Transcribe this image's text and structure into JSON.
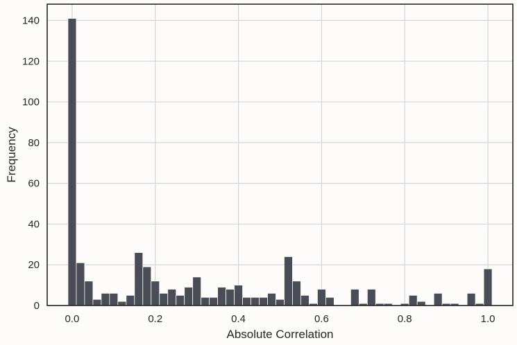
{
  "chart_data": {
    "type": "bar",
    "title": "",
    "xlabel": "Absolute Correlation",
    "ylabel": "Frequency",
    "bin_start": 0.0,
    "bin_width": 0.02,
    "values": [
      141,
      21,
      12,
      3,
      6,
      6,
      2,
      5,
      26,
      19,
      12,
      6,
      8,
      5,
      9,
      14,
      4,
      4,
      9,
      8,
      10,
      4,
      4,
      4,
      6,
      3,
      24,
      12,
      5,
      1,
      8,
      4,
      0,
      0,
      8,
      1,
      8,
      1,
      1,
      0,
      1,
      5,
      2,
      0,
      6,
      1,
      1,
      0,
      6,
      1,
      18
    ],
    "xlim": [
      -0.06,
      1.06
    ],
    "ylim": [
      0,
      148
    ],
    "xticks": [
      "0.0",
      "0.2",
      "0.4",
      "0.6",
      "0.8",
      "1.0"
    ],
    "yticks": [
      "0",
      "20",
      "40",
      "60",
      "80",
      "100",
      "120",
      "140"
    ],
    "grid": true,
    "legend": "none",
    "bar_color": "#4a4d55"
  }
}
